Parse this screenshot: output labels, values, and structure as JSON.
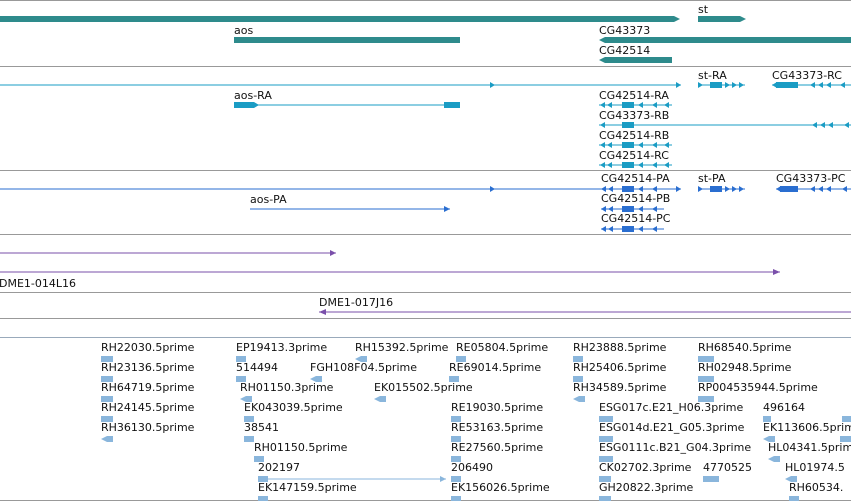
{
  "colors": {
    "gene": "#2e8b8c",
    "transcript": "#1a9cc4",
    "cds": "#2a6ed0",
    "clone": "#7a4faa",
    "est": "#8ab6dc",
    "separator": "#999999"
  },
  "gene_track": {
    "labels": {
      "aos": "aos",
      "st": "st",
      "cg43373": "CG43373",
      "cg42514": "CG42514"
    }
  },
  "transcript_track": {
    "labels": {
      "aos_ra": "aos-RA",
      "st_ra": "st-RA",
      "cg43373_rc": "CG43373-RC",
      "cg42514_ra": "CG42514-RA",
      "cg43373_rb": "CG43373-RB",
      "cg42514_rb": "CG42514-RB",
      "cg42514_rc": "CG42514-RC"
    }
  },
  "cds_track": {
    "labels": {
      "cg42514_pa": "CG42514-PA",
      "st_pa": "st-PA",
      "cg43373_pc": "CG43373-PC",
      "aos_pa": "aos-PA",
      "cg42514_pb": "CG42514-PB",
      "cg42514_pc": "CG42514-PC"
    }
  },
  "clone_track": {
    "labels": {
      "dme1_014l16": "DME1-014L16",
      "dme1_017j16": "DME1-017J16"
    }
  },
  "est_track": {
    "labels": {
      "rh22030": "RH22030.5prime",
      "rh23136": "RH23136.5prime",
      "rh64719": "RH64719.5prime",
      "rh24145": "RH24145.5prime",
      "rh36130": "RH36130.5prime",
      "ep19413": "EP19413.3prime",
      "l514494": "514494",
      "rh01150_3": "RH01150.3prime",
      "ek043039": "EK043039.5prime",
      "l38541": "38541",
      "rh01150_5": "RH01150.5prime",
      "l202197": "202197",
      "ek147159": "EK147159.5prime",
      "rh15392": "RH15392.5prime",
      "fgh108f04": "FGH108F04.5prime",
      "ek015502": "EK015502.5prime",
      "re05804": "RE05804.5prime",
      "re69014": "RE69014.5prime",
      "re19030": "RE19030.5prime",
      "re53163": "RE53163.5prime",
      "re27560": "RE27560.5prime",
      "l206490": "206490",
      "ek156026": "EK156026.5prime",
      "rh23888": "RH23888.5prime",
      "rh25406": "RH25406.5prime",
      "rh34589": "RH34589.5prime",
      "esg017c": "ESG017c.E21_H06.3prime",
      "esg014d": "ESG014d.E21_G05.3prime",
      "esg0111c": "ESG0111c.B21_G04.3prime",
      "ck02702": "CK02702.3prime",
      "l4770525": "4770525",
      "gh20822": "GH20822.3prime",
      "rh68540": "RH68540.5prime",
      "rh02948": "RH02948.5prime",
      "rp004535": "RP004535944.5prime",
      "l496164": "496164",
      "ek113606": "EK113606.5prime",
      "hl04341": "HL04341.5prime",
      "hl01974": "HL01974.5",
      "rh60534": "RH60534."
    }
  }
}
